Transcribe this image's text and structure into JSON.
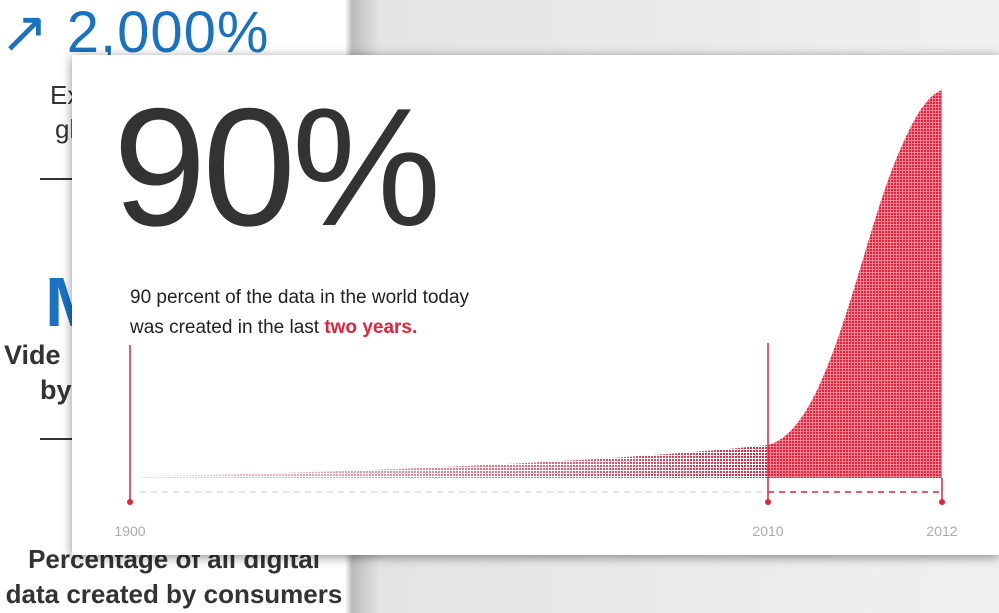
{
  "background": {
    "big_stat": "2,000%",
    "line1": "Ex",
    "line2": "gl",
    "big_letter": "M",
    "line3": "Vide",
    "line4": "by",
    "caption_line1": "Percentage of all digital",
    "caption_line2": "data created by consumers"
  },
  "card": {
    "headline": "90%",
    "text_line1": "90 percent of the data in the world today",
    "text_line2": "was created in the last",
    "highlight": "two years.",
    "axis_labels": [
      "1900",
      "2010",
      "2012"
    ]
  }
}
